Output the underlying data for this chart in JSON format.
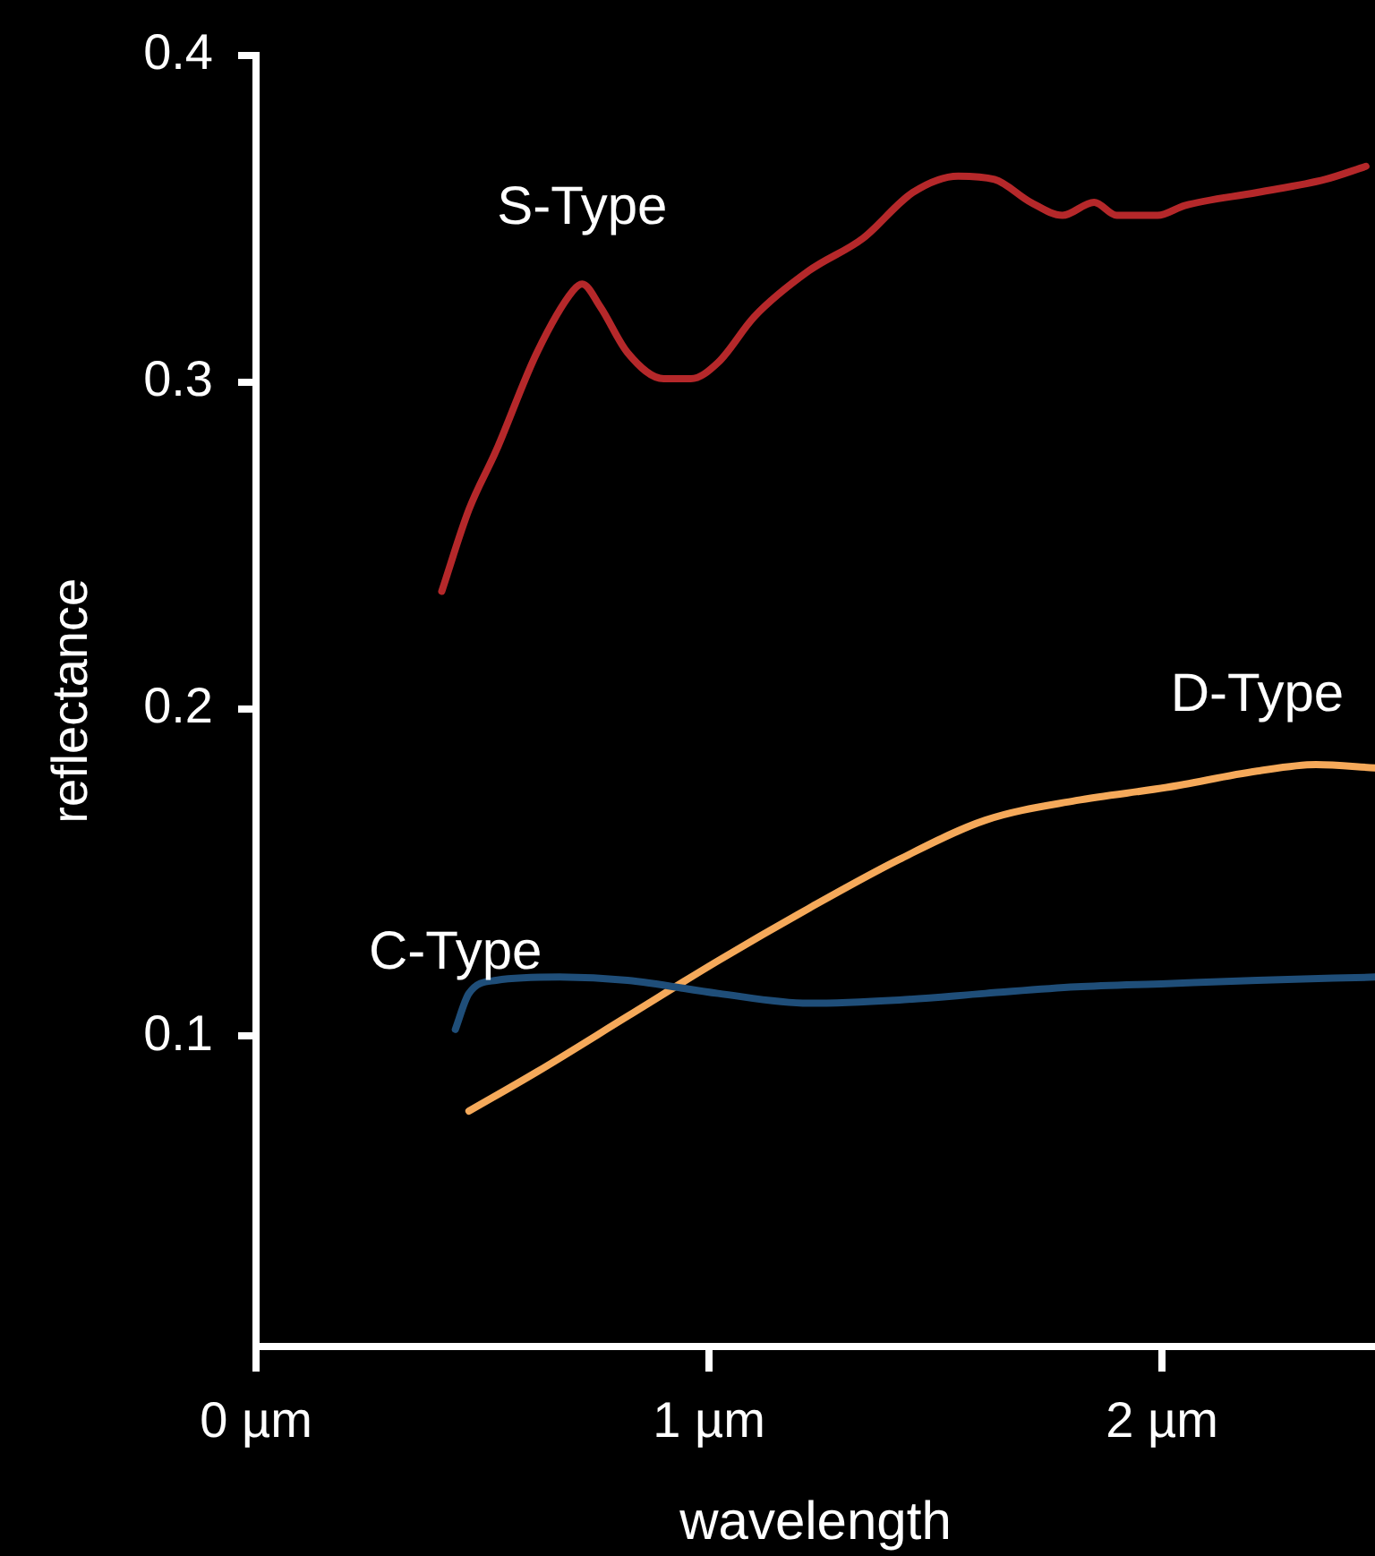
{
  "chart_data": {
    "type": "line",
    "xlabel": "wavelength",
    "ylabel": "reflectance",
    "xlim": [
      0,
      2.47
    ],
    "xticks": [
      {
        "value": 0,
        "label": "0 µm"
      },
      {
        "value": 1,
        "label": "1 µm"
      },
      {
        "value": 2,
        "label": "2 µm"
      }
    ],
    "ylim": [
      0.005,
      0.4
    ],
    "yticks": [
      0.1,
      0.2,
      0.3,
      0.4
    ],
    "grid": false,
    "legend": false,
    "marker": "none",
    "line_style": "solid",
    "series": [
      {
        "name": "S-Type",
        "color": "#b5282a",
        "x": [
          0.41,
          0.47,
          0.53,
          0.62,
          0.7,
          0.72,
          0.76,
          0.82,
          0.9,
          0.96,
          1.02,
          1.1,
          1.22,
          1.34,
          1.45,
          1.55,
          1.63,
          1.71,
          1.78,
          1.85,
          1.9,
          1.99,
          2.05,
          2.21,
          2.36,
          2.45
        ],
        "values": [
          0.236,
          0.261,
          0.279,
          0.309,
          0.328,
          0.33,
          0.323,
          0.309,
          0.301,
          0.301,
          0.306,
          0.32,
          0.334,
          0.344,
          0.358,
          0.363,
          0.362,
          0.355,
          0.351,
          0.355,
          0.351,
          0.351,
          0.354,
          0.358,
          0.362,
          0.366
        ]
      },
      {
        "name": "C-Type",
        "color": "#1f4e79",
        "x": [
          0.44,
          0.47,
          0.53,
          0.67,
          0.82,
          1.02,
          1.22,
          1.42,
          1.61,
          1.81,
          2.01,
          2.21,
          2.47
        ],
        "values": [
          0.102,
          0.113,
          0.117,
          0.118,
          0.117,
          0.113,
          0.11,
          0.111,
          0.113,
          0.115,
          0.116,
          0.117,
          0.118
        ]
      },
      {
        "name": "D-Type",
        "color": "#f5a95a",
        "x": [
          0.47,
          0.62,
          0.82,
          1.02,
          1.22,
          1.42,
          1.61,
          1.81,
          2.01,
          2.21,
          2.34,
          2.47
        ],
        "values": [
          0.077,
          0.089,
          0.106,
          0.123,
          0.139,
          0.154,
          0.166,
          0.172,
          0.176,
          0.181,
          0.183,
          0.182
        ]
      }
    ]
  }
}
